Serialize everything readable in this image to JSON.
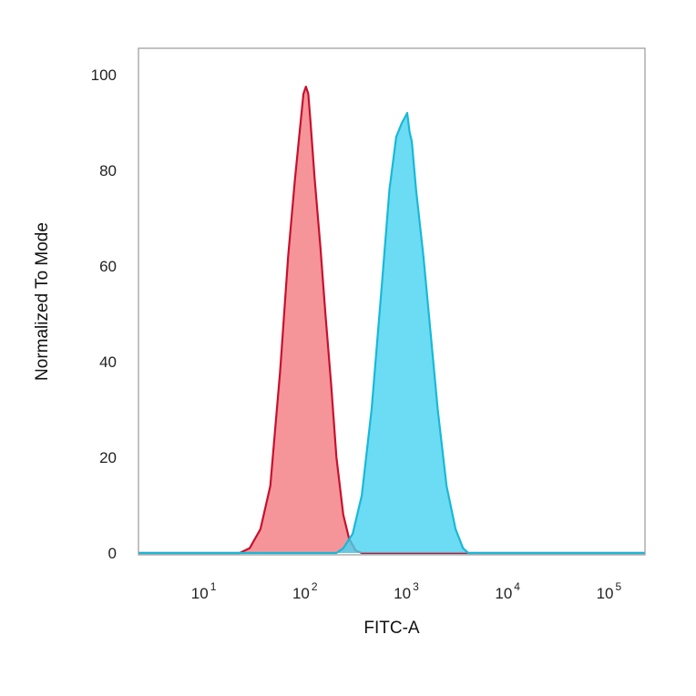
{
  "chart_data": {
    "type": "area",
    "title": "",
    "xlabel": "FITC-A",
    "ylabel": "Normalized To Mode",
    "xscale": "log",
    "xlim": [
      2,
      200000
    ],
    "ylim": [
      0,
      105
    ],
    "grid": false,
    "legend": "none",
    "x_ticks": [
      {
        "value": 10,
        "base": "10",
        "exp": "1"
      },
      {
        "value": 100,
        "base": "10",
        "exp": "2"
      },
      {
        "value": 1000,
        "base": "10",
        "exp": "3"
      },
      {
        "value": 10000,
        "base": "10",
        "exp": "4"
      },
      {
        "value": 100000,
        "base": "10",
        "exp": "5"
      }
    ],
    "y_ticks": [
      {
        "value": 0,
        "label": "0"
      },
      {
        "value": 20,
        "label": "20"
      },
      {
        "value": 40,
        "label": "40"
      },
      {
        "value": 60,
        "label": "60"
      },
      {
        "value": 80,
        "label": "80"
      },
      {
        "value": 100,
        "label": "100"
      }
    ],
    "series": [
      {
        "stroke": "#c8102e",
        "fill": "#f47a80",
        "x": [
          2,
          20,
          25,
          32,
          40,
          50,
          60,
          70,
          78,
          85,
          90,
          95,
          100,
          110,
          125,
          140,
          160,
          180,
          210,
          240,
          280,
          320,
          200000
        ],
        "y": [
          0,
          0,
          1,
          5,
          14,
          38,
          62,
          78,
          88,
          96,
          97.5,
          96,
          90,
          78,
          64,
          50,
          35,
          20,
          8,
          3,
          0.5,
          0,
          0
        ]
      },
      {
        "stroke": "#19b8d8",
        "fill": "#46d3f0",
        "x": [
          2,
          180,
          210,
          260,
          320,
          400,
          500,
          600,
          700,
          800,
          850,
          900,
          950,
          1000,
          1100,
          1300,
          1500,
          1800,
          2200,
          2700,
          3200,
          3600,
          200000
        ],
        "y": [
          0,
          0,
          1,
          4,
          12,
          30,
          55,
          76,
          87,
          90,
          91,
          92,
          88,
          86,
          76,
          62,
          48,
          30,
          14,
          5,
          1,
          0,
          0
        ]
      }
    ]
  }
}
